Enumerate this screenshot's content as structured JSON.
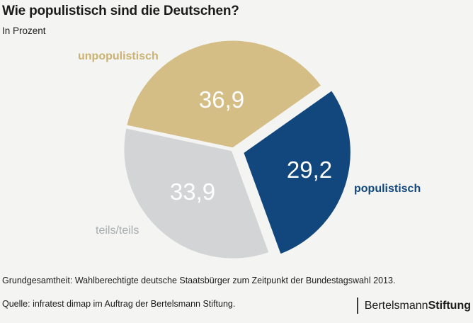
{
  "header": {
    "title": "Wie populistisch sind die Deutschen?",
    "subtitle": "In Prozent"
  },
  "chart_data": {
    "type": "pie",
    "title": "Wie populistisch sind die Deutschen?",
    "unit": "Prozent",
    "start_angle_deg": -78,
    "direction": "clockwise",
    "slices": [
      {
        "label": "unpopulistisch",
        "value": 36.9,
        "display_value": "36,9",
        "color": "#d4be85",
        "label_color": "#c9b272",
        "exploded": false
      },
      {
        "label": "populistisch",
        "value": 29.2,
        "display_value": "29,2",
        "color": "#12477d",
        "label_color": "#12477d",
        "exploded": true
      },
      {
        "label": "teils/teils",
        "value": 33.9,
        "display_value": "33,9",
        "color": "#d2d4d5",
        "label_color": "#a6abae",
        "exploded": false
      }
    ]
  },
  "footer": {
    "population_note": "Grundgesamtheit: Wahlberechtigte deutsche Staatsbürger zum Zeitpunkt der Bundestagswahl 2013.",
    "source_note": "Quelle: infratest dimap im Auftrag der Bertelsmann Stiftung.",
    "logo": {
      "brand": "Bertelsmann",
      "brand_bold": "Stiftung"
    }
  },
  "colors": {
    "background": "#f4f4f3",
    "text": "#1b1b1b",
    "value_text": "#ffffff",
    "logo_divider": "#3a3a3a"
  }
}
